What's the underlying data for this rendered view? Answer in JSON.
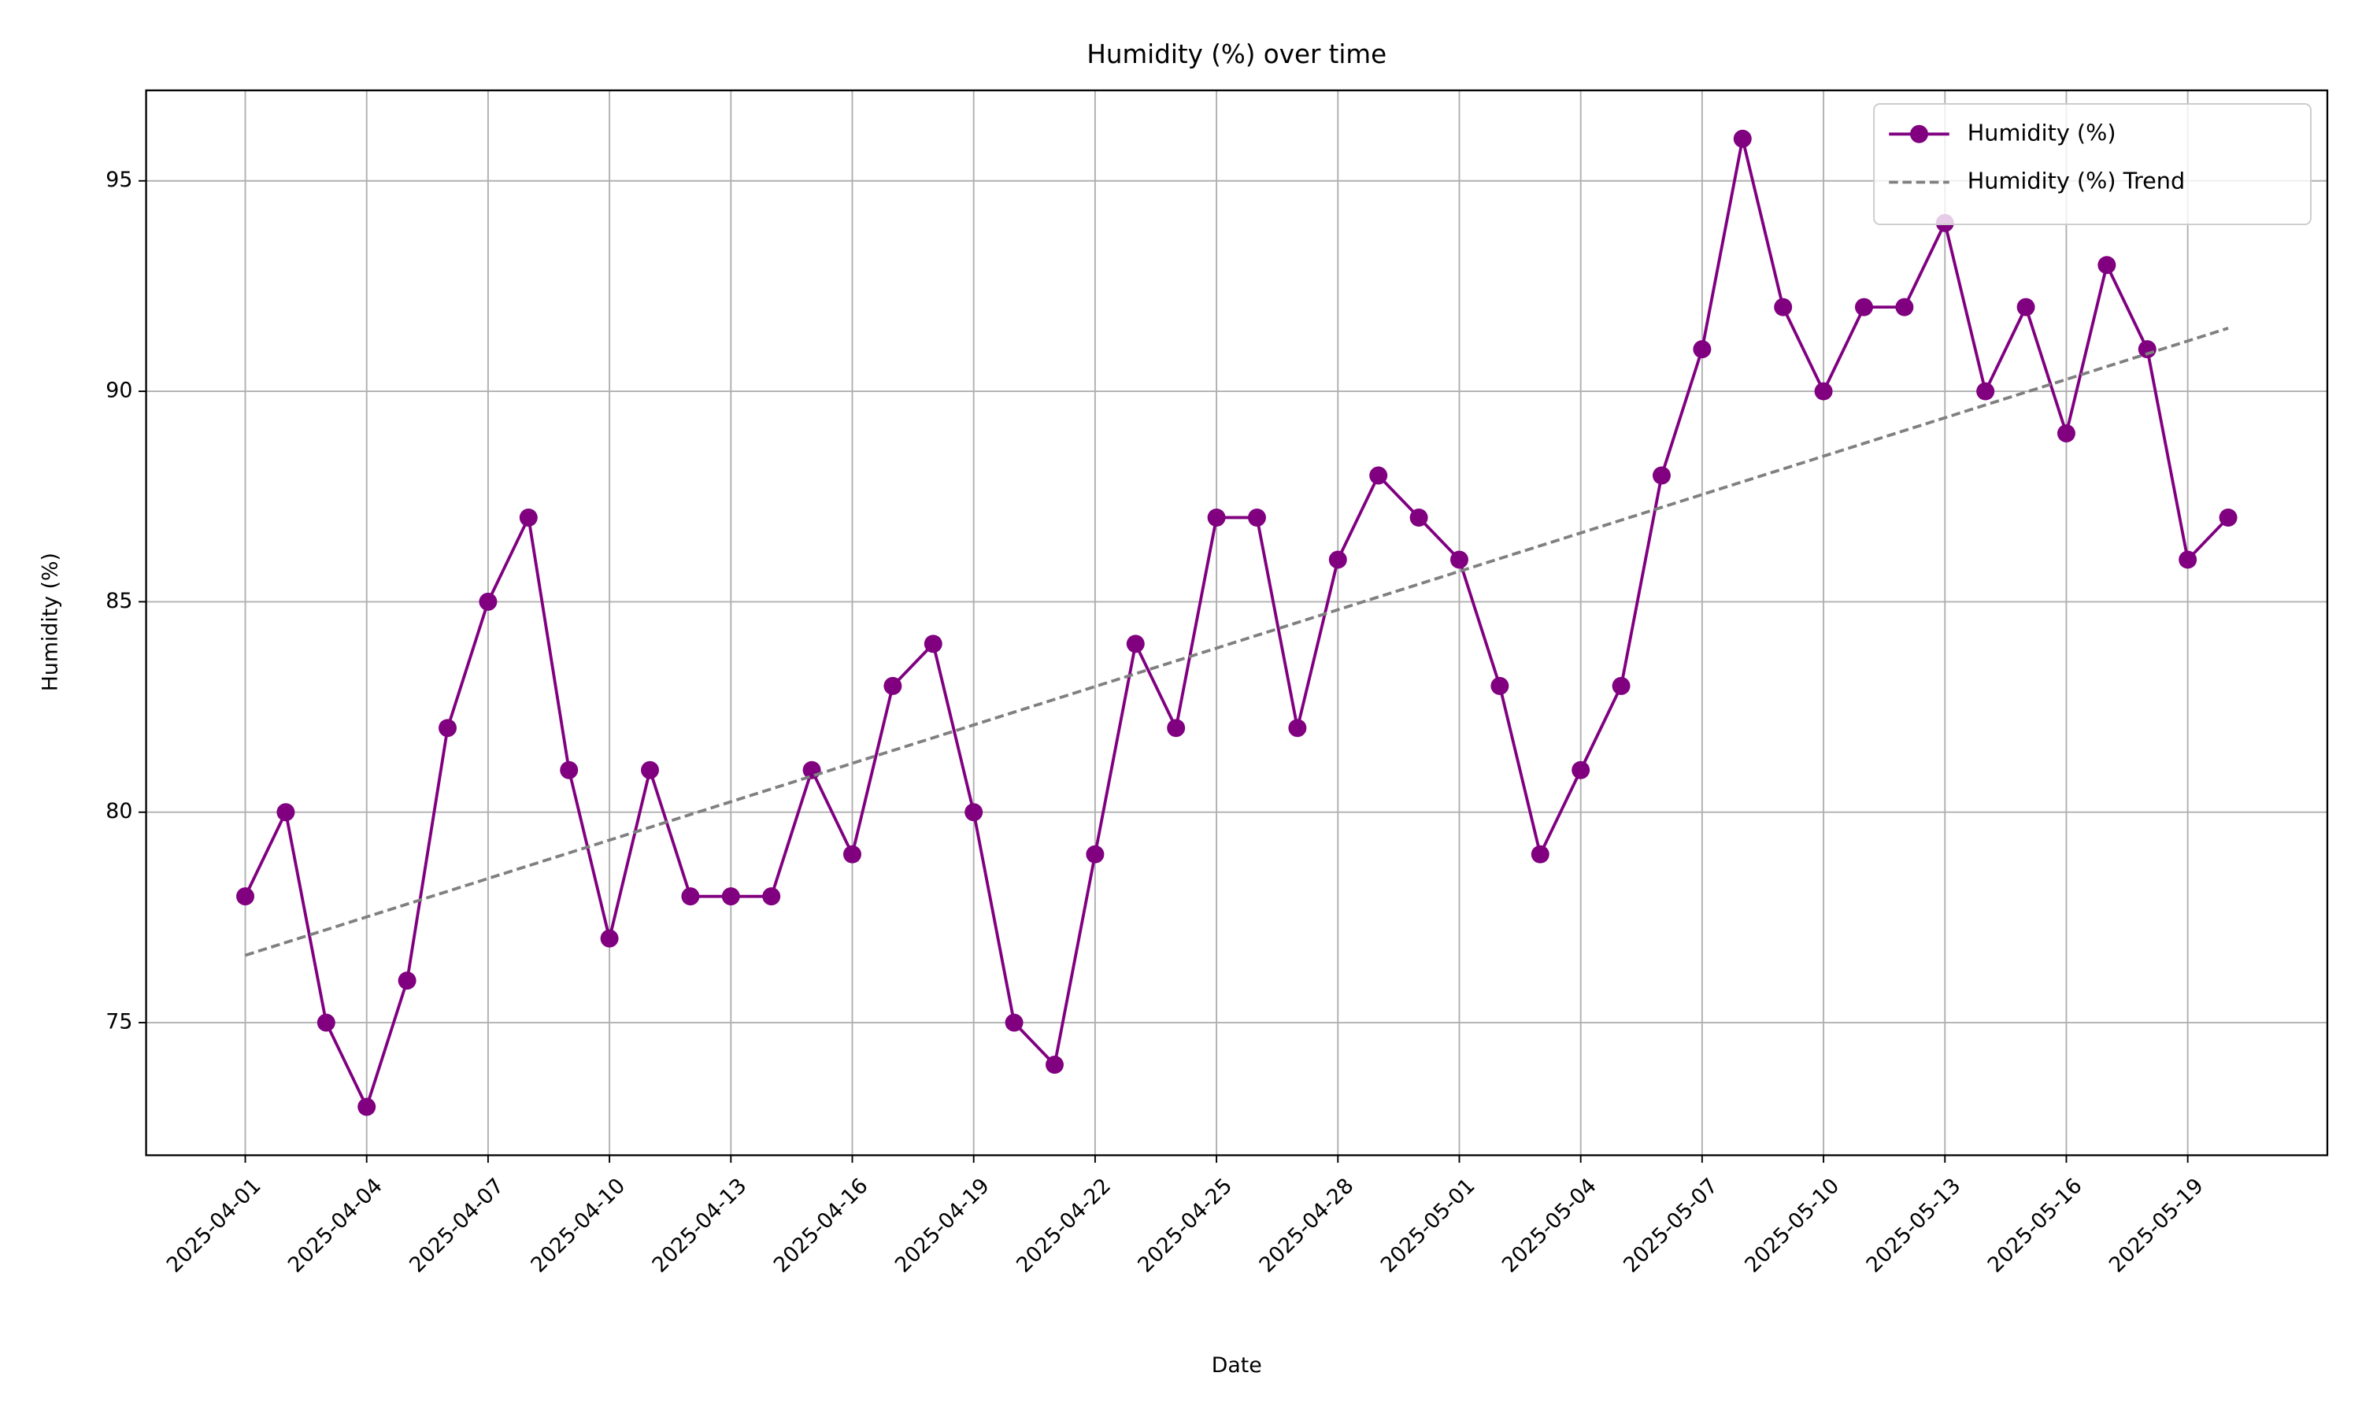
{
  "chart_data": {
    "type": "line",
    "title": "Humidity (%) over time",
    "xlabel": "Date",
    "ylabel": "Humidity (%)",
    "x": [
      "2025-04-01",
      "2025-04-02",
      "2025-04-03",
      "2025-04-04",
      "2025-04-05",
      "2025-04-06",
      "2025-04-07",
      "2025-04-08",
      "2025-04-09",
      "2025-04-10",
      "2025-04-11",
      "2025-04-12",
      "2025-04-13",
      "2025-04-14",
      "2025-04-15",
      "2025-04-16",
      "2025-04-17",
      "2025-04-18",
      "2025-04-19",
      "2025-04-20",
      "2025-04-21",
      "2025-04-22",
      "2025-04-23",
      "2025-04-24",
      "2025-04-25",
      "2025-04-26",
      "2025-04-27",
      "2025-04-28",
      "2025-04-29",
      "2025-04-30",
      "2025-05-01",
      "2025-05-02",
      "2025-05-03",
      "2025-05-04",
      "2025-05-05",
      "2025-05-06",
      "2025-05-07",
      "2025-05-08",
      "2025-05-09",
      "2025-05-10",
      "2025-05-11",
      "2025-05-12",
      "2025-05-13",
      "2025-05-14",
      "2025-05-15",
      "2025-05-16",
      "2025-05-17",
      "2025-05-18",
      "2025-05-19",
      "2025-05-20"
    ],
    "series": [
      {
        "name": "Humidity (%)",
        "color": "#800080",
        "marker": true,
        "values": [
          78,
          80,
          75,
          73,
          76,
          82,
          85,
          87,
          81,
          77,
          81,
          78,
          78,
          78,
          81,
          79,
          83,
          84,
          80,
          75,
          74,
          79,
          84,
          82,
          87,
          87,
          82,
          86,
          88,
          87,
          86,
          83,
          79,
          81,
          83,
          88,
          91,
          96,
          92,
          90,
          92,
          92,
          94,
          90,
          92,
          89,
          93,
          91,
          86,
          87
        ]
      },
      {
        "name": "Humidity (%) Trend",
        "color": "#808080",
        "dashed": true,
        "x": [
          "2025-04-01",
          "2025-05-20"
        ],
        "values": [
          76.6,
          91.5
        ]
      }
    ],
    "xticks": [
      "2025-04-01",
      "2025-04-04",
      "2025-04-07",
      "2025-04-10",
      "2025-04-13",
      "2025-04-16",
      "2025-04-19",
      "2025-04-22",
      "2025-04-25",
      "2025-04-28",
      "2025-05-01",
      "2025-05-04",
      "2025-05-07",
      "2025-05-10",
      "2025-05-13",
      "2025-05-16",
      "2025-05-19"
    ],
    "ylim": [
      71.85,
      97.15
    ],
    "yticks": [
      75,
      80,
      85,
      90,
      95
    ],
    "grid": true,
    "legend": "upper right"
  }
}
